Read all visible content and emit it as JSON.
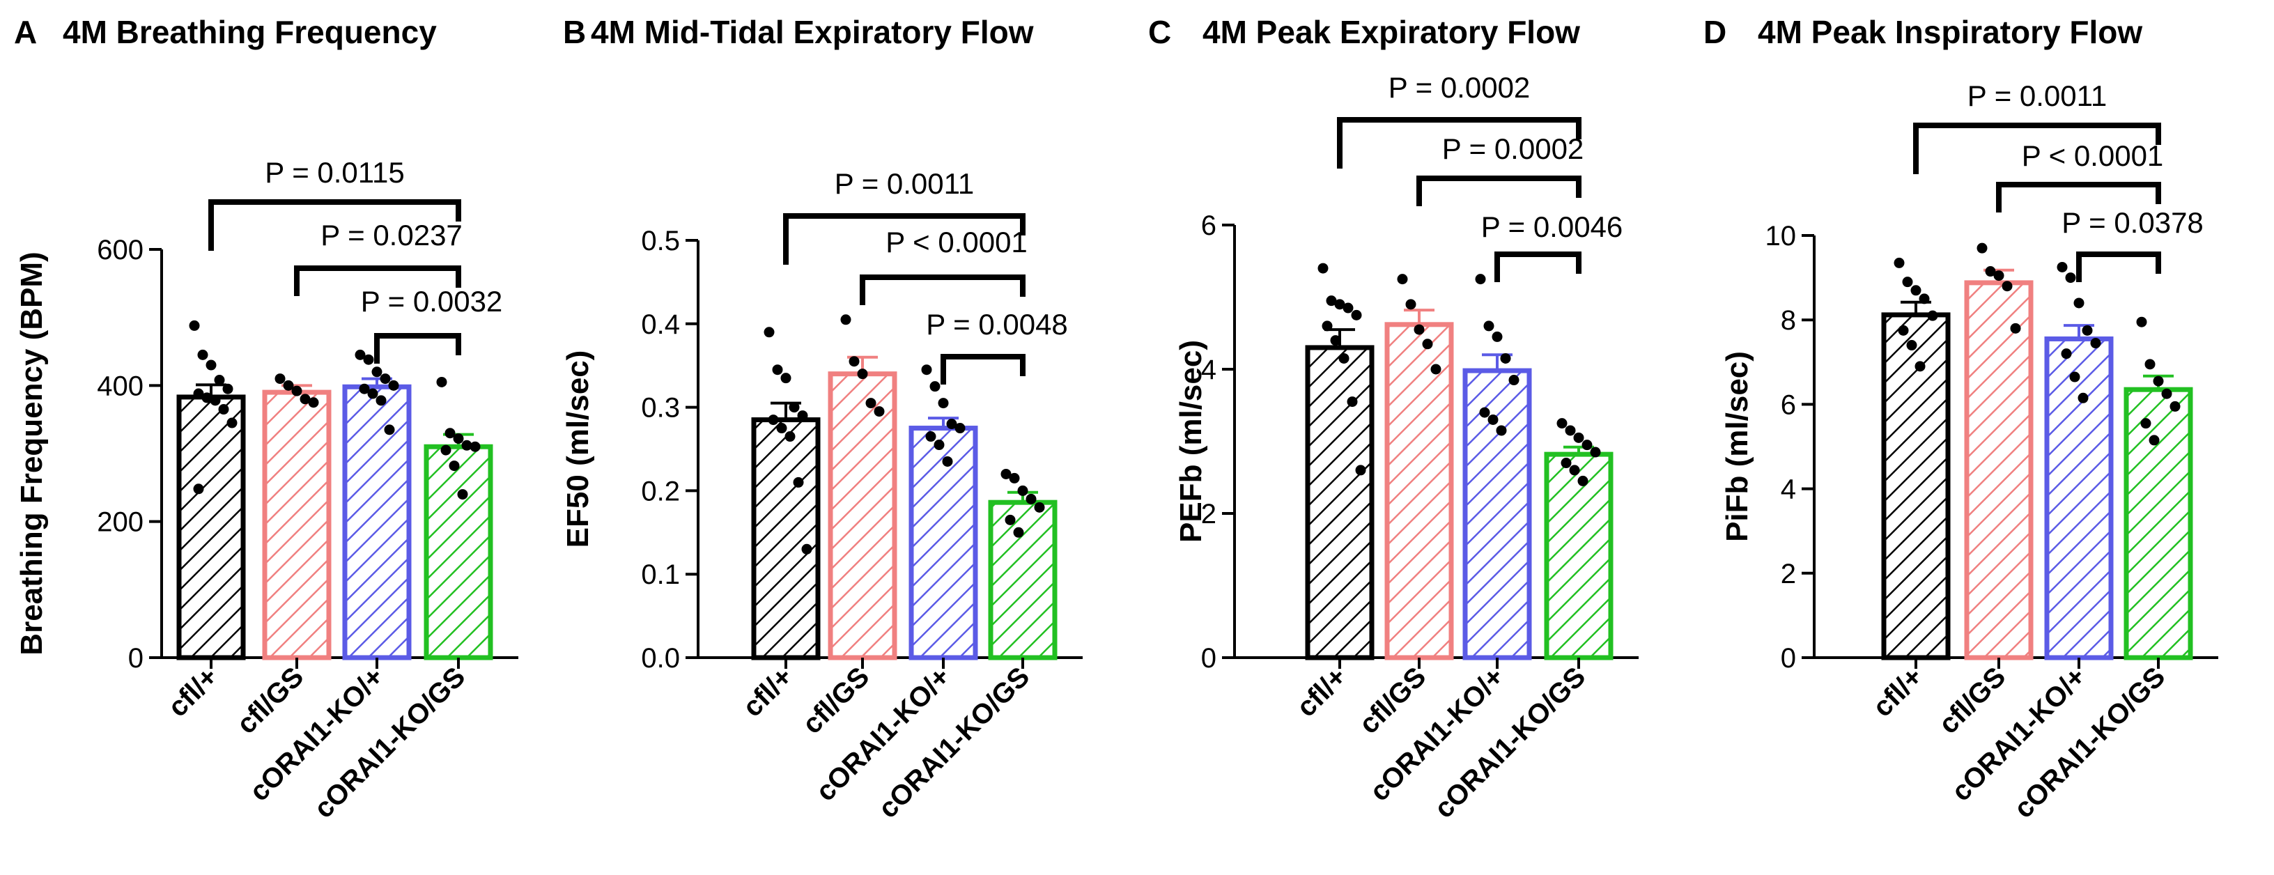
{
  "figure": {
    "groups": [
      "cfl/+",
      "cfl/GS",
      "cORAI1-KO/+",
      "cORAI1-KO/GS"
    ],
    "group_colors": [
      "#000000",
      "#F08080",
      "#5B5BE6",
      "#22C022"
    ],
    "pattern": "diagonal-hatch"
  },
  "chart_data": [
    {
      "type": "bar",
      "panel": "A",
      "title": "4M Breathing Frequency",
      "ylabel": "Breathing Frequency (BPM)",
      "xlabel": "",
      "ylim": [
        0,
        600
      ],
      "yticks": [
        "0",
        "200",
        "400",
        "600"
      ],
      "categories": [
        "cfl/+",
        "cfl/GS",
        "cORAI1-KO/+",
        "cORAI1-KO/GS"
      ],
      "values": [
        383,
        390,
        398,
        310
      ],
      "errors": [
        18,
        10,
        12,
        18
      ],
      "points": [
        [
          488,
          445,
          430,
          408,
          395,
          388,
          382,
          378,
          365,
          345,
          248
        ],
        [
          410,
          400,
          392,
          380,
          375
        ],
        [
          445,
          438,
          420,
          410,
          400,
          395,
          388,
          378,
          335
        ],
        [
          405,
          330,
          322,
          312,
          310,
          305,
          282,
          240
        ]
      ],
      "comparisons": [
        {
          "from": 0,
          "to": 3,
          "label": "P = 0.0115"
        },
        {
          "from": 1,
          "to": 3,
          "label": "P = 0.0237"
        },
        {
          "from": 2,
          "to": 3,
          "label": "P = 0.0032"
        }
      ]
    },
    {
      "type": "bar",
      "panel": "B",
      "title": "4M Mid-Tidal Expiratory Flow",
      "ylabel": "EF50 (ml/sec)",
      "xlabel": "",
      "ylim": [
        0,
        0.5
      ],
      "yticks": [
        "0.0",
        "0.1",
        "0.2",
        "0.3",
        "0.4",
        "0.5"
      ],
      "categories": [
        "cfl/+",
        "cfl/GS",
        "cORAI1-KO/+",
        "cORAI1-KO/GS"
      ],
      "values": [
        0.285,
        0.34,
        0.275,
        0.186
      ],
      "errors": [
        0.02,
        0.02,
        0.012,
        0.012
      ],
      "points": [
        [
          0.39,
          0.345,
          0.335,
          0.3,
          0.29,
          0.285,
          0.275,
          0.265,
          0.21,
          0.13
        ],
        [
          0.405,
          0.355,
          0.34,
          0.305,
          0.295
        ],
        [
          0.345,
          0.325,
          0.305,
          0.28,
          0.275,
          0.265,
          0.255,
          0.235
        ],
        [
          0.22,
          0.215,
          0.2,
          0.19,
          0.18,
          0.165,
          0.15
        ]
      ],
      "comparisons": [
        {
          "from": 0,
          "to": 3,
          "label": "P = 0.0011"
        },
        {
          "from": 1,
          "to": 3,
          "label": "P < 0.0001"
        },
        {
          "from": 2,
          "to": 3,
          "label": "P = 0.0048"
        }
      ]
    },
    {
      "type": "bar",
      "panel": "C",
      "title": "4M Peak Expiratory Flow",
      "ylabel": "PEFb (ml/sec)",
      "xlabel": "",
      "ylim": [
        0,
        6
      ],
      "yticks": [
        "0",
        "2",
        "4",
        "6"
      ],
      "categories": [
        "cfl/+",
        "cfl/GS",
        "cORAI1-KO/+",
        "cORAI1-KO/GS"
      ],
      "values": [
        4.3,
        4.62,
        3.98,
        2.82
      ],
      "errors": [
        0.25,
        0.2,
        0.22,
        0.1
      ],
      "points": [
        [
          5.4,
          4.95,
          4.9,
          4.85,
          4.75,
          4.6,
          4.4,
          4.15,
          3.55,
          2.6
        ],
        [
          5.25,
          4.9,
          4.55,
          4.35,
          4.0
        ],
        [
          5.25,
          4.6,
          4.45,
          4.15,
          3.85,
          3.4,
          3.3,
          3.15
        ],
        [
          3.25,
          3.15,
          3.05,
          2.95,
          2.85,
          2.7,
          2.6,
          2.45
        ]
      ],
      "comparisons": [
        {
          "from": 0,
          "to": 3,
          "label": "P = 0.0002"
        },
        {
          "from": 1,
          "to": 3,
          "label": "P = 0.0002"
        },
        {
          "from": 2,
          "to": 3,
          "label": "P = 0.0046"
        }
      ]
    },
    {
      "type": "bar",
      "panel": "D",
      "title": "4M Peak Inspiratory Flow",
      "ylabel": "PiFb (ml/sec)",
      "xlabel": "",
      "ylim": [
        0,
        10
      ],
      "yticks": [
        "0",
        "2",
        "4",
        "6",
        "8",
        "10"
      ],
      "categories": [
        "cfl/+",
        "cfl/GS",
        "cORAI1-KO/+",
        "cORAI1-KO/GS"
      ],
      "values": [
        8.12,
        8.88,
        7.55,
        6.35
      ],
      "errors": [
        0.3,
        0.3,
        0.32,
        0.32
      ],
      "points": [
        [
          9.35,
          8.9,
          8.7,
          8.5,
          8.1,
          7.75,
          7.4,
          6.9
        ],
        [
          9.7,
          9.15,
          9.05,
          8.8,
          7.8
        ],
        [
          9.25,
          9.0,
          8.4,
          7.75,
          7.45,
          7.2,
          6.65,
          6.15
        ],
        [
          7.95,
          6.95,
          6.55,
          6.25,
          5.95,
          5.55,
          5.15
        ]
      ],
      "comparisons": [
        {
          "from": 0,
          "to": 3,
          "label": "P = 0.0011"
        },
        {
          "from": 1,
          "to": 3,
          "label": "P < 0.0001"
        },
        {
          "from": 2,
          "to": 3,
          "label": "P = 0.0378"
        }
      ]
    }
  ]
}
